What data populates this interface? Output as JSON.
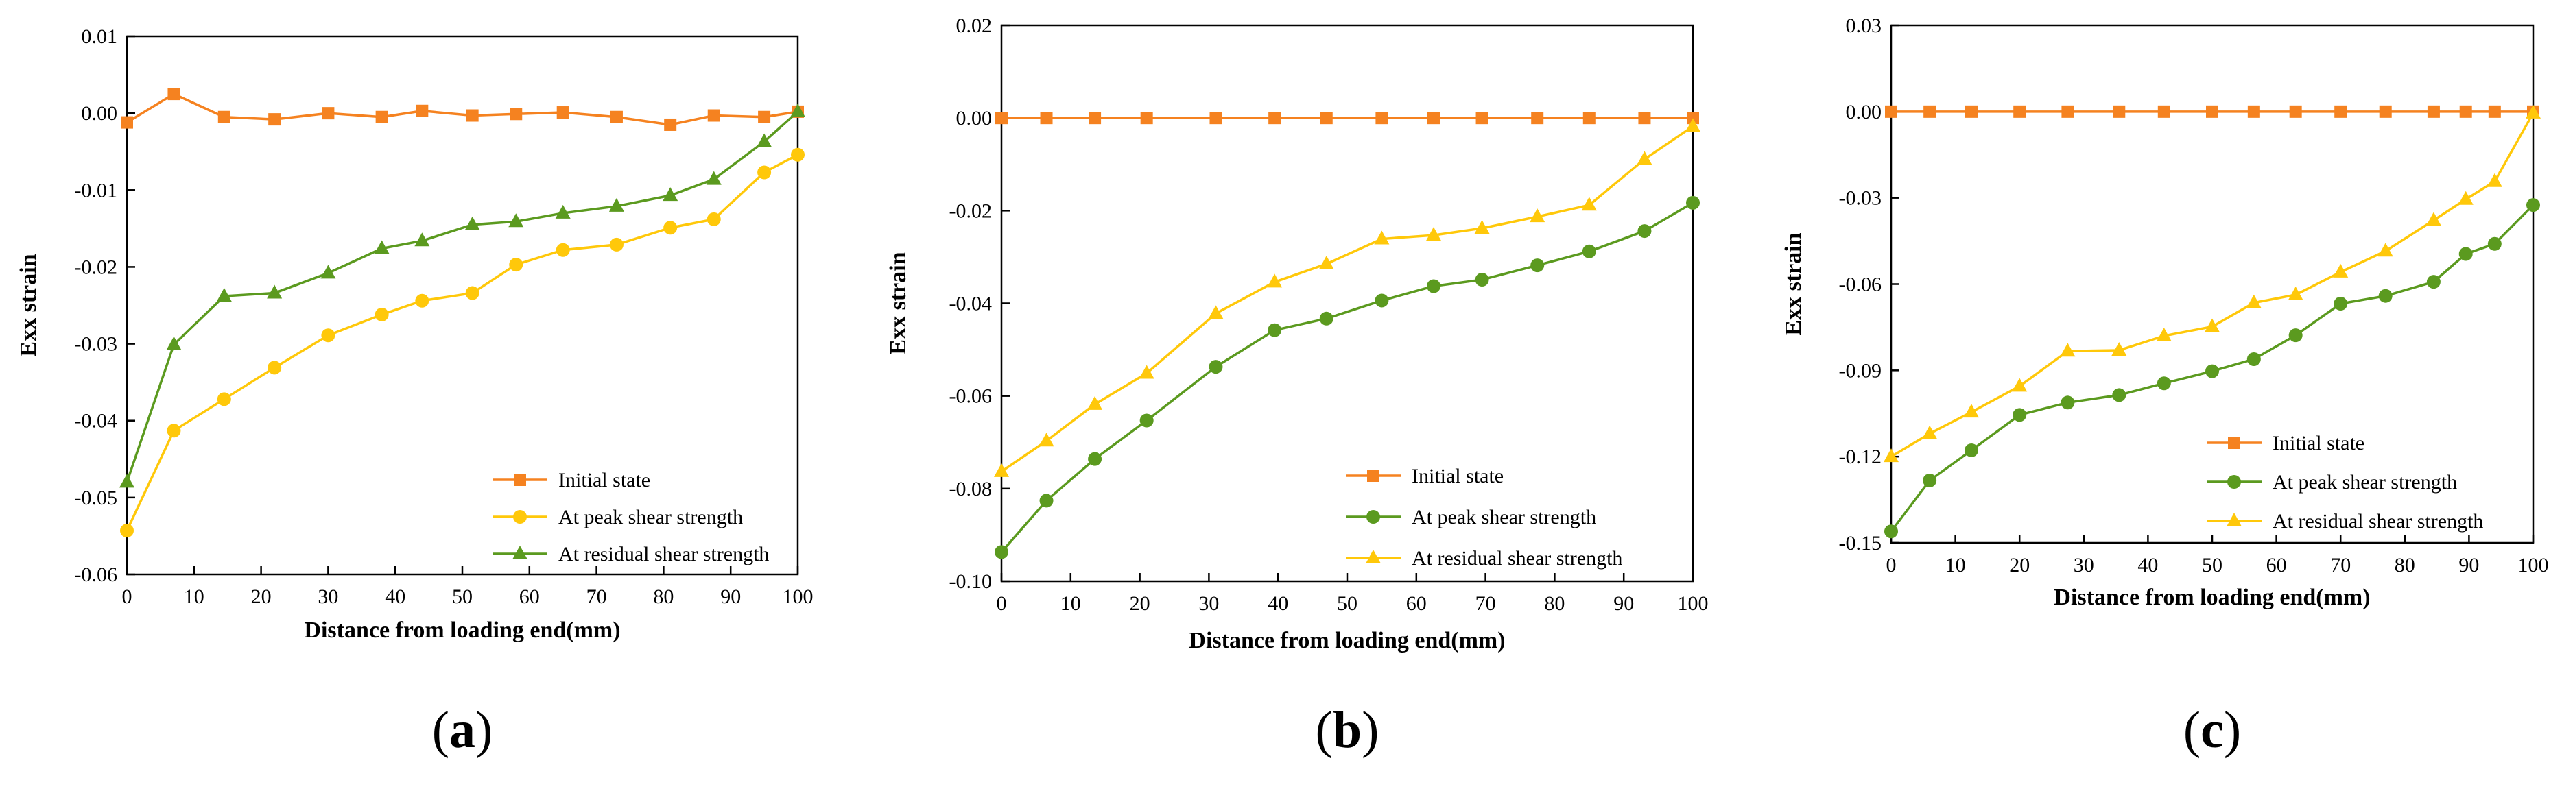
{
  "colors": {
    "initial": "#F58220",
    "peak_yellow": "#FFC80A",
    "residual_green": "#5B9A1F",
    "peak_green": "#5B9A1F",
    "residual_yellow": "#FFC80A"
  },
  "chart_data": [
    {
      "type": "line",
      "panel": "a",
      "panel_label": "(a)",
      "xlabel": "Distance from loading end(mm)",
      "ylabel": "Exx strain",
      "xlim": [
        0,
        100
      ],
      "ylim": [
        -0.06,
        0.01
      ],
      "xticks": [
        0,
        10,
        20,
        30,
        40,
        50,
        60,
        70,
        80,
        90,
        100
      ],
      "yticks": [
        -0.06,
        -0.05,
        -0.04,
        -0.03,
        -0.02,
        -0.01,
        0.0,
        0.01
      ],
      "ytick_labels": [
        "-0.06",
        "-0.05",
        "-0.04",
        "-0.03",
        "-0.02",
        "-0.01",
        "0.00",
        "0.01"
      ],
      "legend_position": "bottom-right",
      "series": [
        {
          "name": "Initial state",
          "marker": "square",
          "color": "#F58220",
          "x": [
            0,
            7,
            14.5,
            22,
            30,
            38,
            44,
            51.5,
            58,
            65,
            73,
            81,
            87.5,
            95,
            100
          ],
          "y": [
            -0.0012,
            0.0025,
            -0.0005,
            -0.0008,
            0.0,
            -0.0005,
            0.0003,
            -0.0003,
            -0.0001,
            0.0001,
            -0.0005,
            -0.0015,
            -0.0003,
            -0.0005,
            0.0002
          ]
        },
        {
          "name": "At peak shear strength",
          "marker": "circle",
          "color": "#FFC80A",
          "x": [
            0,
            7,
            14.5,
            22,
            30,
            38,
            44,
            51.5,
            58,
            65,
            73,
            81,
            87.5,
            95,
            100
          ],
          "y": [
            -0.0543,
            -0.0413,
            -0.0372,
            -0.0331,
            -0.0289,
            -0.0262,
            -0.0244,
            -0.0234,
            -0.0197,
            -0.0178,
            -0.0171,
            -0.0149,
            -0.0138,
            -0.0077,
            -0.0054
          ]
        },
        {
          "name": "At residual shear strength",
          "marker": "triangle",
          "color": "#5B9A1F",
          "x": [
            0,
            7,
            14.5,
            22,
            30,
            38,
            44,
            51.5,
            58,
            65,
            73,
            81,
            87.5,
            95,
            100
          ],
          "y": [
            -0.048,
            -0.0301,
            -0.0238,
            -0.0234,
            -0.0208,
            -0.0176,
            -0.0166,
            -0.0145,
            -0.0141,
            -0.013,
            -0.0121,
            -0.0107,
            -0.0086,
            -0.0037,
            0.0002
          ]
        }
      ]
    },
    {
      "type": "line",
      "panel": "b",
      "panel_label": "(b)",
      "xlabel": "Distance from loading end(mm)",
      "ylabel": "Exx strain",
      "xlim": [
        0,
        100
      ],
      "ylim": [
        -0.1,
        0.02
      ],
      "xticks": [
        0,
        10,
        20,
        30,
        40,
        50,
        60,
        70,
        80,
        90,
        100
      ],
      "yticks": [
        -0.1,
        -0.08,
        -0.06,
        -0.04,
        -0.02,
        0.0,
        0.02
      ],
      "ytick_labels": [
        "-0.10",
        "-0.08",
        "-0.06",
        "-0.04",
        "-0.02",
        "0.00",
        "0.02"
      ],
      "legend_position": "bottom-right",
      "series": [
        {
          "name": "Initial state",
          "marker": "square",
          "color": "#F58220",
          "x": [
            0,
            6.5,
            13.5,
            21,
            31,
            39.5,
            47,
            55,
            62.5,
            69.5,
            77.5,
            85,
            93,
            100
          ],
          "y": [
            0,
            0,
            0,
            0,
            0,
            0,
            0,
            0,
            0,
            0,
            0,
            0,
            0,
            0
          ]
        },
        {
          "name": "At peak shear strength",
          "marker": "circle",
          "color": "#5B9A1F",
          "x": [
            0,
            6.5,
            13.5,
            21,
            31,
            39.5,
            47,
            55,
            62.5,
            69.5,
            77.5,
            85,
            93,
            100
          ],
          "y": [
            -0.0937,
            -0.0826,
            -0.0736,
            -0.0653,
            -0.0537,
            -0.0458,
            -0.0433,
            -0.0394,
            -0.0363,
            -0.0349,
            -0.0318,
            -0.0288,
            -0.0244,
            -0.0183
          ]
        },
        {
          "name": "At residual shear strength",
          "marker": "triangle",
          "color": "#FFC80A",
          "x": [
            0,
            6.5,
            13.5,
            21,
            31,
            39.5,
            47,
            55,
            62.5,
            69.5,
            77.5,
            85,
            93,
            100
          ],
          "y": [
            -0.0763,
            -0.0697,
            -0.0618,
            -0.0551,
            -0.0422,
            -0.0354,
            -0.0315,
            -0.0261,
            -0.0253,
            -0.0238,
            -0.0213,
            -0.0188,
            -0.0089,
            -0.0018
          ]
        }
      ]
    },
    {
      "type": "line",
      "panel": "c",
      "panel_label": "(c)",
      "xlabel": "Distance from loading end(mm)",
      "ylabel": "Exx strain",
      "xlim": [
        0,
        100
      ],
      "ylim": [
        -0.15,
        0.03
      ],
      "xticks": [
        0,
        10,
        20,
        30,
        40,
        50,
        60,
        70,
        80,
        90,
        100
      ],
      "yticks": [
        -0.15,
        -0.12,
        -0.09,
        -0.06,
        -0.03,
        0.0,
        0.03
      ],
      "ytick_labels": [
        "-0.15",
        "-0.12",
        "-0.09",
        "-0.06",
        "-0.03",
        "0.00",
        "0.03"
      ],
      "legend_position": "bottom-right",
      "series": [
        {
          "name": "Initial state",
          "marker": "square",
          "color": "#F58220",
          "x": [
            0,
            6,
            12.5,
            20,
            27.5,
            35.5,
            42.5,
            50,
            56.5,
            63,
            70,
            77,
            84.5,
            89.5,
            94,
            100
          ],
          "y": [
            0,
            0,
            0,
            0,
            0,
            0,
            0,
            0,
            0,
            0,
            0,
            0,
            0,
            0,
            0,
            0
          ]
        },
        {
          "name": "At peak shear strength",
          "marker": "circle",
          "color": "#5B9A1F",
          "x": [
            0,
            6,
            12.5,
            20,
            27.5,
            35.5,
            42.5,
            50,
            56.5,
            63,
            70,
            77,
            84.5,
            89.5,
            94,
            100
          ],
          "y": [
            -0.146,
            -0.1283,
            -0.1178,
            -0.1055,
            -0.1012,
            -0.0986,
            -0.0945,
            -0.0903,
            -0.0861,
            -0.0778,
            -0.0668,
            -0.0641,
            -0.0592,
            -0.0495,
            -0.046,
            -0.0325
          ]
        },
        {
          "name": "At residual shear strength",
          "marker": "triangle",
          "color": "#FFC80A",
          "x": [
            0,
            6,
            12.5,
            20,
            27.5,
            35.5,
            42.5,
            50,
            56.5,
            63,
            70,
            77,
            84.5,
            89.5,
            94,
            100
          ],
          "y": [
            -0.12,
            -0.112,
            -0.1045,
            -0.0955,
            -0.0833,
            -0.083,
            -0.078,
            -0.0748,
            -0.0665,
            -0.0637,
            -0.0558,
            -0.0485,
            -0.0378,
            -0.0305,
            -0.0243,
            -0.0005
          ]
        }
      ]
    }
  ]
}
